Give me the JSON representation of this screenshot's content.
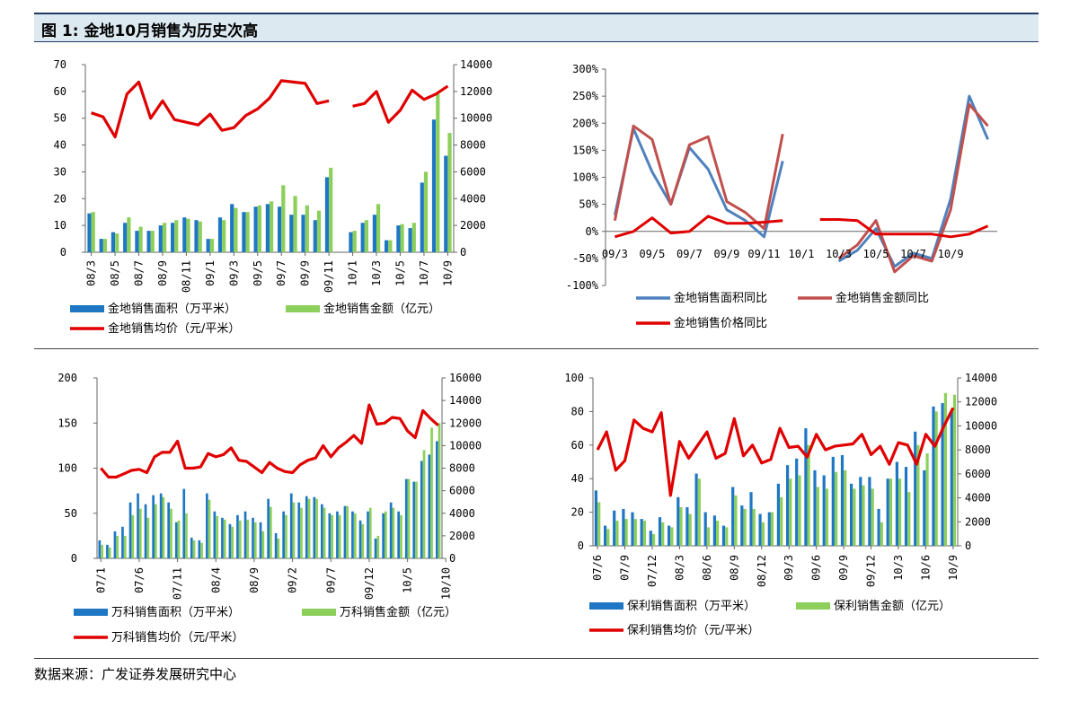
{
  "header": {
    "title": "图 1: 金地10月销售为历史次高"
  },
  "footer": {
    "source": "数据来源：广发证券发展研究中心"
  },
  "colors": {
    "blue": "#1f77c4",
    "green": "#8ccf5a",
    "red": "#e00000",
    "steel": "#4f81bd",
    "brick": "#c0504d"
  },
  "chart_data": [
    {
      "type": "bar",
      "ylim": [
        0,
        70
      ],
      "y2lim": [
        0,
        14000
      ],
      "yticks": [
        "0",
        "10",
        "20",
        "30",
        "40",
        "50",
        "60",
        "70"
      ],
      "y2ticks": [
        "0",
        "2000",
        "4000",
        "6000",
        "8000",
        "10000",
        "12000",
        "14000"
      ],
      "xticks": [
        "08/3",
        "08/5",
        "08/7",
        "08/9",
        "08/11",
        "09/1",
        "09/3",
        "09/5",
        "09/7",
        "09/9",
        "09/11",
        "10/1",
        "10/3",
        "10/5",
        "10/7",
        "10/9"
      ],
      "tick_index": [
        0,
        2,
        4,
        6,
        8,
        10,
        12,
        14,
        16,
        18,
        20,
        22,
        24,
        26,
        28,
        30
      ],
      "bar_series": [
        {
          "name": "金地销售面积（万平米）",
          "values": [
            14.5,
            5,
            7.5,
            11,
            8,
            8,
            10,
            11,
            13,
            12,
            5,
            13,
            18,
            15,
            17,
            18,
            17,
            14,
            14,
            12,
            28,
            null,
            7.5,
            11,
            14,
            4.5,
            10,
            9,
            26,
            49.5,
            36
          ]
        },
        {
          "name": "金地销售金额（亿元）",
          "values": [
            15,
            5,
            7,
            13,
            9.5,
            8,
            11,
            12,
            12.5,
            11.5,
            5,
            12,
            16.5,
            15,
            17.5,
            19,
            25,
            21,
            17.5,
            15.5,
            31.5,
            null,
            8,
            12,
            18,
            4.5,
            10.5,
            11,
            30,
            59,
            44.5
          ]
        }
      ],
      "line_series": [
        {
          "name": "金地销售均价（元/平米）",
          "values": [
            10400,
            10100,
            8600,
            11800,
            12700,
            10000,
            11300,
            9900,
            9700,
            9500,
            10300,
            9100,
            9300,
            10200,
            10700,
            11500,
            12800,
            12700,
            12600,
            11100,
            11300,
            null,
            10900,
            11100,
            12000,
            9700,
            10600,
            12100,
            11400,
            11800,
            12400
          ]
        }
      ]
    },
    {
      "type": "line",
      "ylim": [
        -100,
        300
      ],
      "yticks": [
        "-100%",
        "-50%",
        "0%",
        "50%",
        "100%",
        "150%",
        "200%",
        "250%",
        "300%"
      ],
      "xticks": [
        "09/3",
        "09/5",
        "09/7",
        "09/9",
        "09/11",
        "10/1",
        "10/3",
        "10/5",
        "10/7",
        "10/9"
      ],
      "tick_index": [
        0,
        2,
        4,
        6,
        8,
        10,
        12,
        14,
        16,
        18
      ],
      "series": [
        {
          "name": "金地销售面积同比",
          "values": [
            30,
            190,
            110,
            50,
            155,
            115,
            40,
            20,
            -10,
            130,
            null,
            null,
            -55,
            -35,
            5,
            -65,
            -40,
            -50,
            60,
            250,
            170
          ]
        },
        {
          "name": "金地销售金额同比",
          "values": [
            20,
            195,
            170,
            50,
            160,
            175,
            55,
            35,
            5,
            180,
            null,
            null,
            -50,
            -25,
            20,
            -75,
            -45,
            -55,
            40,
            235,
            195
          ]
        },
        {
          "name": "金地销售价格同比",
          "values": [
            -10,
            0,
            25,
            -3,
            0,
            28,
            15,
            15,
            17,
            20,
            null,
            22,
            22,
            20,
            -5,
            -5,
            -5,
            -5,
            -10,
            -5,
            10
          ]
        }
      ]
    },
    {
      "type": "bar",
      "ylim": [
        0,
        200
      ],
      "y2lim": [
        0,
        16000
      ],
      "yticks": [
        "0",
        "50",
        "100",
        "150",
        "200"
      ],
      "y2ticks": [
        "0",
        "2000",
        "4000",
        "6000",
        "8000",
        "10000",
        "12000",
        "14000",
        "16000"
      ],
      "xticks": [
        "07/1",
        "07/6",
        "07/11",
        "08/4",
        "08/9",
        "09/2",
        "09/7",
        "09/12",
        "10/5",
        "10/10"
      ],
      "tick_index": [
        0,
        5,
        10,
        15,
        20,
        25,
        30,
        35,
        40,
        45
      ],
      "bar_series": [
        {
          "name": "万科销售面积（万平米）",
          "values": [
            20,
            15,
            30,
            35,
            62,
            72,
            60,
            70,
            72,
            62,
            40,
            77,
            23,
            20,
            72,
            52,
            45,
            38,
            48,
            52,
            45,
            40,
            66,
            28,
            52,
            72,
            62,
            69,
            68,
            60,
            50,
            52,
            58,
            52,
            42,
            52,
            22,
            50,
            62,
            52,
            88,
            85,
            108,
            115,
            130
          ]
        },
        {
          "name": "万科销售金额（亿元）",
          "values": [
            15,
            12,
            25,
            25,
            48,
            55,
            45,
            60,
            68,
            55,
            42,
            50,
            20,
            17,
            65,
            47,
            43,
            35,
            42,
            43,
            40,
            30,
            57,
            22,
            48,
            62,
            56,
            66,
            66,
            56,
            48,
            48,
            58,
            50,
            38,
            56,
            25,
            52,
            56,
            48,
            88,
            85,
            120,
            145,
            150
          ]
        }
      ],
      "line_series": [
        {
          "name": "万科销售均价（元/平米）",
          "values": [
            8000,
            7200,
            7200,
            7500,
            7800,
            7900,
            7600,
            9000,
            9400,
            9400,
            10400,
            8000,
            8000,
            8100,
            9300,
            9000,
            9200,
            9800,
            8700,
            8600,
            8100,
            7600,
            8500,
            8000,
            7700,
            7600,
            8300,
            8700,
            8900,
            10000,
            9000,
            9800,
            10300,
            10900,
            10200,
            13600,
            11900,
            12000,
            12500,
            12400,
            11300,
            10700,
            13100,
            12400,
            11800
          ]
        }
      ]
    },
    {
      "type": "bar",
      "ylim": [
        0,
        100
      ],
      "y2lim": [
        0,
        14000
      ],
      "yticks": [
        "0",
        "20",
        "40",
        "60",
        "80",
        "100"
      ],
      "y2ticks": [
        "0",
        "2000",
        "4000",
        "6000",
        "8000",
        "10000",
        "12000",
        "14000"
      ],
      "xticks": [
        "07/6",
        "07/9",
        "07/12",
        "08/3",
        "08/6",
        "08/9",
        "08/12",
        "09/3",
        "09/6",
        "09/9",
        "09/12",
        "10/3",
        "10/6",
        "10/9"
      ],
      "tick_index": [
        0,
        3,
        6,
        9,
        12,
        15,
        18,
        21,
        24,
        27,
        30,
        33,
        36,
        39
      ],
      "bar_series": [
        {
          "name": "保利销售面积（万平米）",
          "values": [
            33,
            12,
            21,
            22,
            20,
            16,
            9,
            17,
            12,
            29,
            23,
            43,
            20,
            18,
            12,
            35,
            24,
            32,
            19,
            20,
            37,
            48,
            52,
            70,
            45,
            42,
            53,
            54,
            37,
            41,
            41,
            22,
            40,
            50,
            47,
            68,
            45,
            83,
            85,
            80
          ]
        },
        {
          "name": "保利销售金额（亿元）",
          "values": [
            26,
            10,
            15,
            16,
            16,
            15,
            7,
            14,
            11,
            23,
            19,
            40,
            11,
            15,
            11,
            30,
            22,
            22,
            14,
            20,
            29,
            40,
            42,
            60,
            35,
            34,
            44,
            45,
            34,
            36,
            34,
            14,
            40,
            40,
            32,
            60,
            55,
            80,
            91,
            90
          ]
        }
      ],
      "line_series": [
        {
          "name": "保利销售均价（元/平米）",
          "values": [
            8000,
            9500,
            6300,
            7100,
            10500,
            9800,
            9500,
            11100,
            4200,
            8700,
            7300,
            8400,
            9500,
            7300,
            7700,
            10600,
            7500,
            8400,
            6900,
            7200,
            9800,
            8200,
            8300,
            7400,
            9300,
            8000,
            8300,
            8400,
            8500,
            9300,
            7600,
            8300,
            6800,
            8600,
            8400,
            6800,
            9300,
            8300,
            10000,
            11500
          ]
        }
      ]
    }
  ]
}
